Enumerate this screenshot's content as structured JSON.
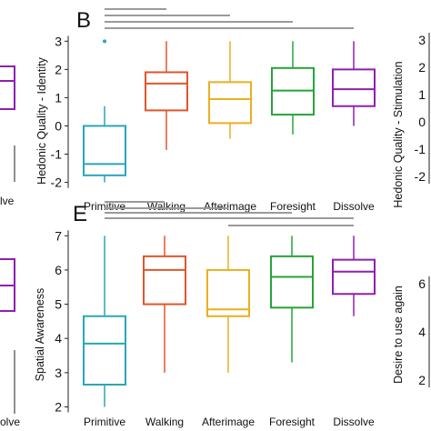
{
  "colors": {
    "Primitive": "#2aa6b8",
    "Walking": "#e0552a",
    "Afterimage": "#ebae1f",
    "Foresight": "#27a33a",
    "Dissolve": "#8e1fb0",
    "bracket": "#9a9a9a",
    "axis": "#222222"
  },
  "chart_data": [
    {
      "panel": "B",
      "type": "box",
      "ylabel": "Hedonic Quality - Identity",
      "categories": [
        "Primitive",
        "Walking",
        "Afterimage",
        "Foresight",
        "Dissolve"
      ],
      "ylim": [
        -2.4,
        3.3
      ],
      "yticks": [
        "-2",
        "-1",
        "0",
        "1",
        "2",
        "3"
      ],
      "boxes": [
        {
          "min": -2.0,
          "q1": -1.75,
          "median": -1.35,
          "q3": 0.0,
          "max": 0.7,
          "outliers": [
            3.0
          ]
        },
        {
          "min": -0.85,
          "q1": 0.55,
          "median": 1.5,
          "q3": 1.9,
          "max": 3.0,
          "outliers": []
        },
        {
          "min": -0.45,
          "q1": 0.1,
          "median": 0.95,
          "q3": 1.55,
          "max": 3.0,
          "outliers": []
        },
        {
          "min": -0.3,
          "q1": 0.4,
          "median": 1.25,
          "q3": 2.05,
          "max": 3.0,
          "outliers": []
        },
        {
          "min": 0.0,
          "q1": 0.7,
          "median": 1.3,
          "q3": 2.0,
          "max": 3.0,
          "outliers": []
        }
      ],
      "significance_brackets": [
        {
          "from": "Primitive",
          "to": "Walking"
        },
        {
          "from": "Primitive",
          "to": "Afterimage"
        },
        {
          "from": "Primitive",
          "to": "Foresight"
        },
        {
          "from": "Primitive",
          "to": "Dissolve"
        }
      ]
    },
    {
      "panel": "E",
      "type": "box",
      "ylabel": "Spatial Awareness",
      "categories": [
        "Primitive",
        "Walking",
        "Afterimage",
        "Foresight",
        "Dissolve"
      ],
      "ylim": [
        1.8,
        7.3
      ],
      "yticks": [
        "2",
        "3",
        "4",
        "5",
        "6",
        "7"
      ],
      "boxes": [
        {
          "min": 2.0,
          "q1": 2.65,
          "median": 3.85,
          "q3": 4.65,
          "max": 7.0,
          "outliers": []
        },
        {
          "min": 3.0,
          "q1": 5.0,
          "median": 6.0,
          "q3": 6.4,
          "max": 7.0,
          "outliers": []
        },
        {
          "min": 3.0,
          "q1": 4.65,
          "median": 4.85,
          "q3": 6.0,
          "max": 7.0,
          "outliers": []
        },
        {
          "min": 3.3,
          "q1": 4.9,
          "median": 5.8,
          "q3": 6.4,
          "max": 7.0,
          "outliers": []
        },
        {
          "min": 4.65,
          "q1": 5.3,
          "median": 5.95,
          "q3": 6.3,
          "max": 7.0,
          "outliers": []
        }
      ],
      "significance_brackets": [
        {
          "from": "Primitive",
          "to": "Walking"
        },
        {
          "from": "Primitive",
          "to": "Afterimage"
        },
        {
          "from": "Primitive",
          "to": "Foresight"
        },
        {
          "from": "Primitive",
          "to": "Dissolve"
        },
        {
          "from": "Afterimage",
          "to": "Dissolve"
        }
      ]
    }
  ],
  "left_partial_panels": [
    {
      "category_label": "lve"
    },
    {
      "category_label": "olve"
    }
  ],
  "right_partial_panels": [
    {
      "ylabel": "Hedonic Quality - Stimulation",
      "yticks": [
        "3",
        "2",
        "1",
        "0",
        "-1",
        "-2"
      ]
    },
    {
      "ylabel": "Desire to use again",
      "yticks": [
        "6",
        "4",
        "2"
      ]
    }
  ]
}
